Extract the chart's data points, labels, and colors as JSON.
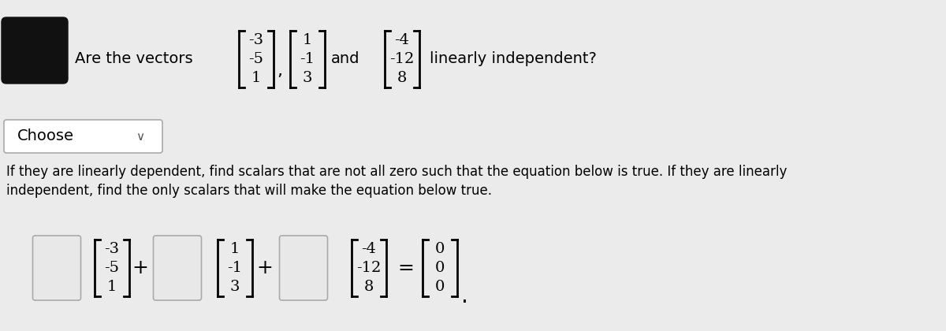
{
  "bg_color": "#ebebeb",
  "title_text": "Are the vectors",
  "vec1": [
    "-3",
    "-5",
    "1"
  ],
  "vec2": [
    "1",
    "-1",
    "3"
  ],
  "vec3": [
    "-4",
    "-12",
    "8"
  ],
  "zero_vec": [
    "0",
    "0",
    "0"
  ],
  "and_text": "and",
  "linearly_text": "linearly independent?",
  "choose_label": "Choose",
  "body_text_line1": "If they are linearly dependent, find scalars that are not all zero such that the equation below is true. If they are linearly",
  "body_text_line2": "independent, find the only scalars that will make the equation below true.",
  "plus_text": "+",
  "equals_text": "=",
  "font_size_main": 14,
  "font_size_body": 12,
  "font_size_vec": 14
}
